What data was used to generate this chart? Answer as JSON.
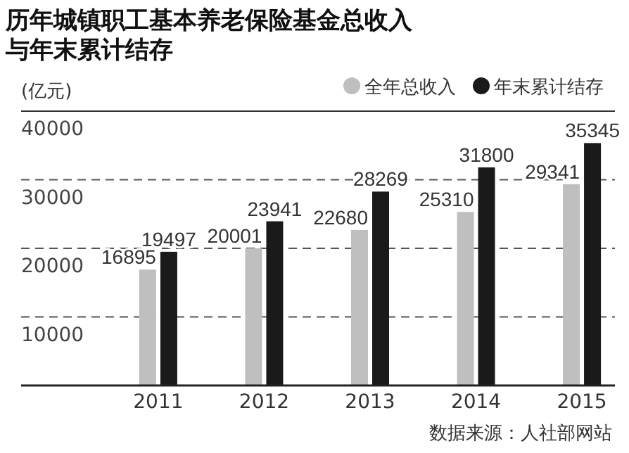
{
  "chart_data": {
    "type": "bar",
    "title": "历年城镇职工基本养老保险基金总收入与年末累计结存",
    "ylabel": "(亿元)",
    "categories": [
      "2011",
      "2012",
      "2013",
      "2014",
      "2015"
    ],
    "series": [
      {
        "name": "全年总收入",
        "color": "#bfbfbf",
        "values": [
          16895,
          20001,
          22680,
          25310,
          29341
        ]
      },
      {
        "name": "年末累计结存",
        "color": "#1a1a1a",
        "values": [
          19497,
          23941,
          28269,
          31800,
          35345
        ]
      }
    ],
    "ylim": [
      0,
      40000
    ],
    "yticks": [
      10000,
      20000,
      30000,
      40000
    ],
    "grid": "y",
    "line_style": "dashed",
    "legend": "top right",
    "data_labels": true,
    "annotations": [
      "数据来源：人社部网站"
    ]
  }
}
